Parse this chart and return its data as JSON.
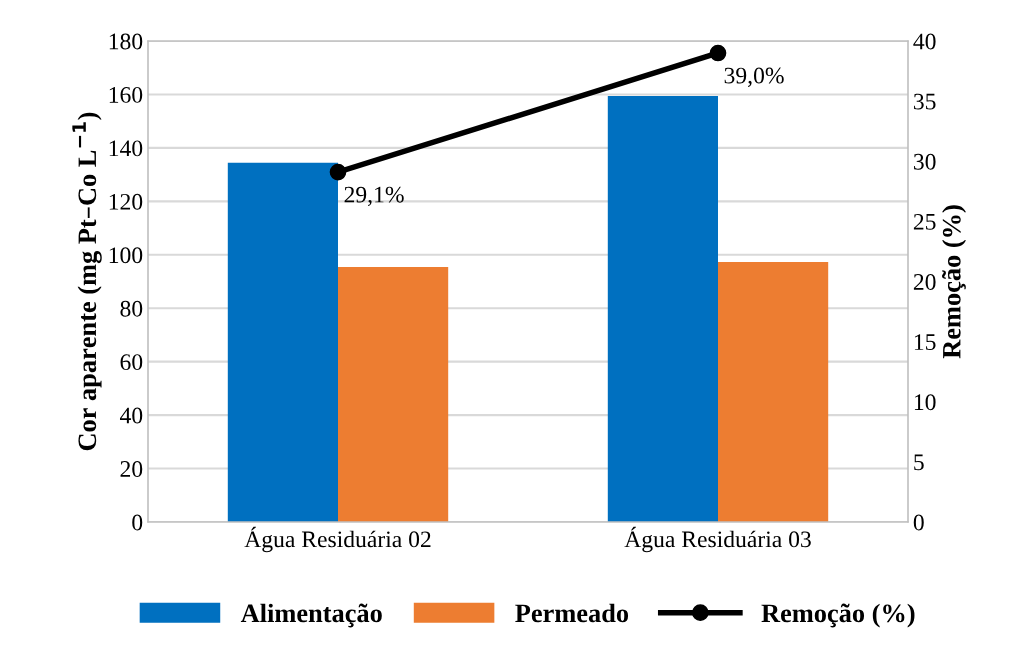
{
  "chart_data": {
    "type": "bar",
    "ylabel": "Cor aparente (mg Pt–Co L$^{−1}$)",
    "y2label": "Remoção (%)",
    "categories": [
      "Água Residuária 02",
      "Água Residuária 03"
    ],
    "series": [
      {
        "name": "Alimentação",
        "color": "#0070c0",
        "values": [
          134.4,
          159.4
        ]
      },
      {
        "name": "Permeado",
        "color": "#ed7d31",
        "values": [
          95.4,
          97.3
        ]
      },
      {
        "name": "Remoção (%)",
        "type": "line",
        "axis": "y2",
        "color": "#000000",
        "values": [
          29.1,
          39.0
        ],
        "value_labels": [
          "29,1%",
          "39,0%"
        ],
        "marker": "circle",
        "line_style": "solid"
      }
    ],
    "ylim": [
      0,
      180
    ],
    "yticks": [
      0,
      20,
      40,
      60,
      80,
      100,
      120,
      140,
      160,
      180
    ],
    "y2lim": [
      0,
      40
    ],
    "y2ticks": [
      0,
      5,
      10,
      15,
      20,
      25,
      30,
      35,
      40
    ],
    "grid": "y",
    "legend": "bottom"
  }
}
